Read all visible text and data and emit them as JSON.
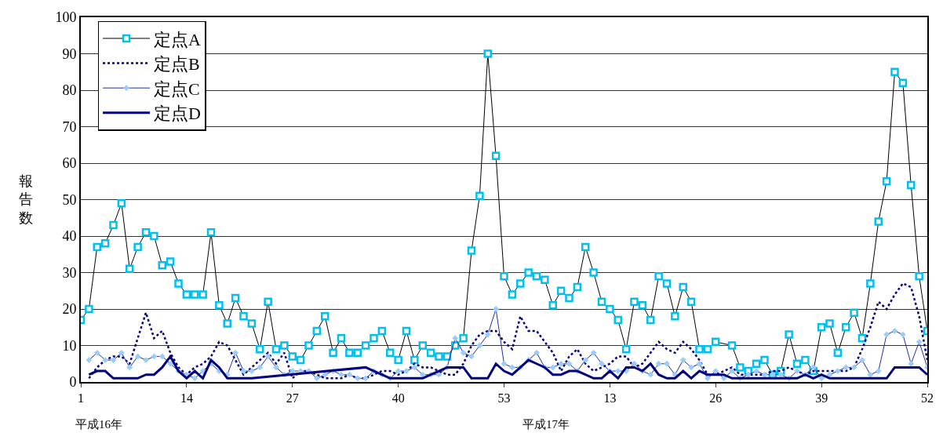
{
  "chart_data": {
    "type": "line",
    "ylabel": "報告数",
    "categories": [
      "1",
      null,
      null,
      null,
      null,
      null,
      null,
      null,
      null,
      null,
      null,
      null,
      null,
      "14",
      null,
      null,
      null,
      null,
      null,
      null,
      null,
      null,
      null,
      null,
      null,
      null,
      "27",
      null,
      null,
      null,
      null,
      null,
      null,
      null,
      null,
      null,
      null,
      null,
      null,
      "40",
      null,
      null,
      null,
      null,
      null,
      null,
      null,
      null,
      null,
      null,
      null,
      null,
      "53",
      null,
      null,
      null,
      null,
      null,
      null,
      null,
      null,
      null,
      null,
      null,
      null,
      "13",
      null,
      null,
      null,
      null,
      null,
      null,
      null,
      null,
      null,
      null,
      null,
      null,
      "26",
      null,
      null,
      null,
      null,
      null,
      null,
      null,
      null,
      null,
      null,
      null,
      null,
      "39",
      null,
      null,
      null,
      null,
      null,
      null,
      null,
      null,
      null,
      null,
      null,
      null,
      "52"
    ],
    "series": [
      {
        "name": "定点A",
        "color": "#00c0f0",
        "marker": "square",
        "line_style": "solid",
        "values": [
          17,
          20,
          37,
          38,
          43,
          49,
          31,
          37,
          41,
          40,
          32,
          33,
          27,
          24,
          24,
          24,
          41,
          21,
          16,
          23,
          18,
          16,
          9,
          22,
          9,
          10,
          7,
          6,
          10,
          14,
          18,
          8,
          12,
          8,
          8,
          10,
          12,
          14,
          8,
          6,
          14,
          6,
          10,
          8,
          7,
          7,
          10,
          12,
          36,
          51,
          90,
          62,
          29,
          24,
          27,
          30,
          29,
          28,
          21,
          25,
          23,
          26,
          37,
          30,
          22,
          20,
          17,
          9,
          22,
          21,
          17,
          29,
          27,
          18,
          26,
          22,
          9,
          9,
          11,
          null,
          10,
          4,
          3,
          5,
          6,
          2,
          3,
          13,
          5,
          6,
          3,
          15,
          16,
          8,
          15,
          19,
          12,
          27,
          44,
          55,
          85,
          82,
          54,
          29,
          14
        ]
      },
      {
        "name": "定点B",
        "color": "#000080",
        "marker": "none",
        "line_style": "dotted",
        "values": [
          null,
          1,
          4,
          6,
          7,
          7,
          5,
          12,
          19,
          12,
          14,
          8,
          4,
          2,
          4,
          5,
          7,
          11,
          10,
          6,
          2,
          4,
          6,
          8,
          5,
          8,
          1,
          3,
          3,
          2,
          1,
          1,
          1,
          2,
          1,
          1,
          2,
          3,
          3,
          2,
          3,
          5,
          4,
          4,
          3,
          2,
          2,
          5,
          10,
          13,
          14,
          14,
          11,
          9,
          18,
          14,
          14,
          11,
          8,
          3,
          7,
          9,
          5,
          3,
          4,
          5,
          7,
          7,
          4,
          5,
          8,
          11,
          9,
          8,
          11,
          9,
          6,
          2,
          2,
          3,
          4,
          2,
          2,
          2,
          2,
          3,
          3,
          4,
          3,
          2,
          3,
          3,
          3,
          3,
          3,
          4,
          9,
          15,
          22,
          20,
          24,
          27,
          26,
          18,
          6
        ]
      },
      {
        "name": "定点C",
        "color": "#99ccff",
        "marker": "diamond",
        "line_style": "solid",
        "values": [
          null,
          6,
          8,
          6,
          6,
          8,
          4,
          7,
          6,
          7,
          7,
          5,
          3,
          2,
          1,
          3,
          5,
          3,
          2,
          8,
          3,
          3,
          4,
          7,
          4,
          2,
          3,
          3,
          3,
          1,
          2,
          3,
          2,
          2,
          1,
          1,
          3,
          2,
          1,
          3,
          3,
          4,
          2,
          2,
          2,
          4,
          12,
          8,
          7,
          10,
          13,
          20,
          5,
          4,
          4,
          6,
          8,
          4,
          4,
          5,
          5,
          3,
          6,
          8,
          5,
          3,
          3,
          3,
          5,
          3,
          2,
          5,
          5,
          2,
          6,
          4,
          5,
          1,
          3,
          1,
          3,
          1,
          2,
          3,
          2,
          2,
          2,
          1,
          3,
          2,
          4,
          1,
          2,
          3,
          4,
          4,
          6,
          2,
          3,
          13,
          14,
          13,
          5,
          11,
          4
        ]
      },
      {
        "name": "定点D",
        "color": "#000080",
        "marker": "none",
        "line_style": "solid",
        "values": [
          null,
          2,
          3,
          3,
          1,
          1,
          1,
          1,
          2,
          2,
          4,
          7,
          3,
          1,
          3,
          1,
          6,
          4,
          1,
          1,
          1,
          1,
          null,
          null,
          null,
          null,
          null,
          null,
          null,
          null,
          null,
          null,
          null,
          null,
          null,
          4,
          3,
          2,
          1,
          1,
          1,
          1,
          1,
          2,
          3,
          4,
          4,
          4,
          1,
          1,
          1,
          5,
          3,
          2,
          4,
          6,
          5,
          4,
          2,
          2,
          3,
          3,
          2,
          1,
          1,
          3,
          1,
          4,
          4,
          3,
          5,
          2,
          1,
          1,
          3,
          1,
          3,
          2,
          2,
          2,
          1,
          1,
          1,
          1,
          1,
          1,
          1,
          1,
          1,
          2,
          1,
          2,
          1,
          1,
          1,
          1,
          1,
          1,
          1,
          1,
          4,
          4,
          4,
          4,
          2
        ]
      }
    ],
    "ylim": [
      0,
      100
    ],
    "yticks": [
      0,
      10,
      20,
      30,
      40,
      50,
      60,
      70,
      80,
      90,
      100
    ],
    "grid": "y",
    "legend": "top left",
    "annotations": [
      "平成16年",
      "平成17年"
    ]
  }
}
